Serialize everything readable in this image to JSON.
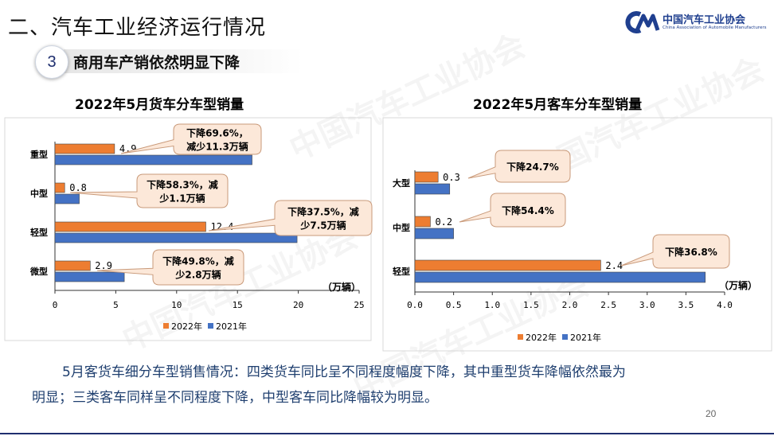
{
  "header": {
    "title": "二、汽车工业经济运行情况",
    "logo_cn": "中国汽车工业协会",
    "logo_en": "China Association of Automobile Manufacturers",
    "section_number": "3",
    "section_title": "商用车产销依然明显下降"
  },
  "colors": {
    "series_2022": "#ED7D31",
    "series_2021": "#4472C4",
    "callout_fill": "#FCE8D9",
    "callout_border": "#C99A7A",
    "text_blue": "#1F3F6F"
  },
  "chart_data": [
    {
      "type": "bar",
      "orientation": "horizontal",
      "title": "2022年5月货车分车型销量",
      "categories": [
        "重型",
        "中型",
        "轻型",
        "微型"
      ],
      "series": [
        {
          "name": "2022年",
          "values": [
            4.9,
            0.8,
            12.4,
            2.9
          ]
        },
        {
          "name": "2021年",
          "values": [
            16.2,
            2.0,
            19.9,
            5.7
          ]
        }
      ],
      "data_labels": [
        "4.9",
        "0.8",
        "12.4",
        "2.9"
      ],
      "xlim": [
        0,
        25
      ],
      "xticks": [
        "0",
        "5",
        "10",
        "15",
        "20",
        "25"
      ],
      "unit": "（万辆）",
      "annotations": [
        [
          "下降69.6%，",
          "减少11.3万辆"
        ],
        [
          "下降58.3%，减",
          "少1.1万辆"
        ],
        [
          "下降37.5%，减",
          "少7.5万辆"
        ],
        [
          "下降49.8%，减",
          "少2.8万辆"
        ]
      ],
      "legend": "bottom"
    },
    {
      "type": "bar",
      "orientation": "horizontal",
      "title": "2022年5月客车分车型销量",
      "categories": [
        "大型",
        "中型",
        "轻型"
      ],
      "series": [
        {
          "name": "2022年",
          "values": [
            0.3,
            0.2,
            2.4
          ]
        },
        {
          "name": "2021年",
          "values": [
            0.45,
            0.5,
            3.75
          ]
        }
      ],
      "data_labels": [
        "0.3",
        "0.2",
        "2.4"
      ],
      "xlim": [
        0,
        4.0
      ],
      "xticks": [
        "0.0",
        "0.5",
        "1.0",
        "1.5",
        "2.0",
        "2.5",
        "3.0",
        "3.5",
        "4.0"
      ],
      "unit": "（万辆）",
      "annotations": [
        [
          "下降24.7%"
        ],
        [
          "下降54.4%"
        ],
        [
          "下降36.8%"
        ]
      ],
      "legend": "bottom"
    }
  ],
  "summary": {
    "line1": "5月客货车细分车型销售情况：四类货车同比呈不同程度幅度下降，其中重型货车降幅依然最为",
    "line2": "明显；三类客车同样呈不同程度下降，中型客车同比降幅较为明显。"
  },
  "page_number": "20"
}
